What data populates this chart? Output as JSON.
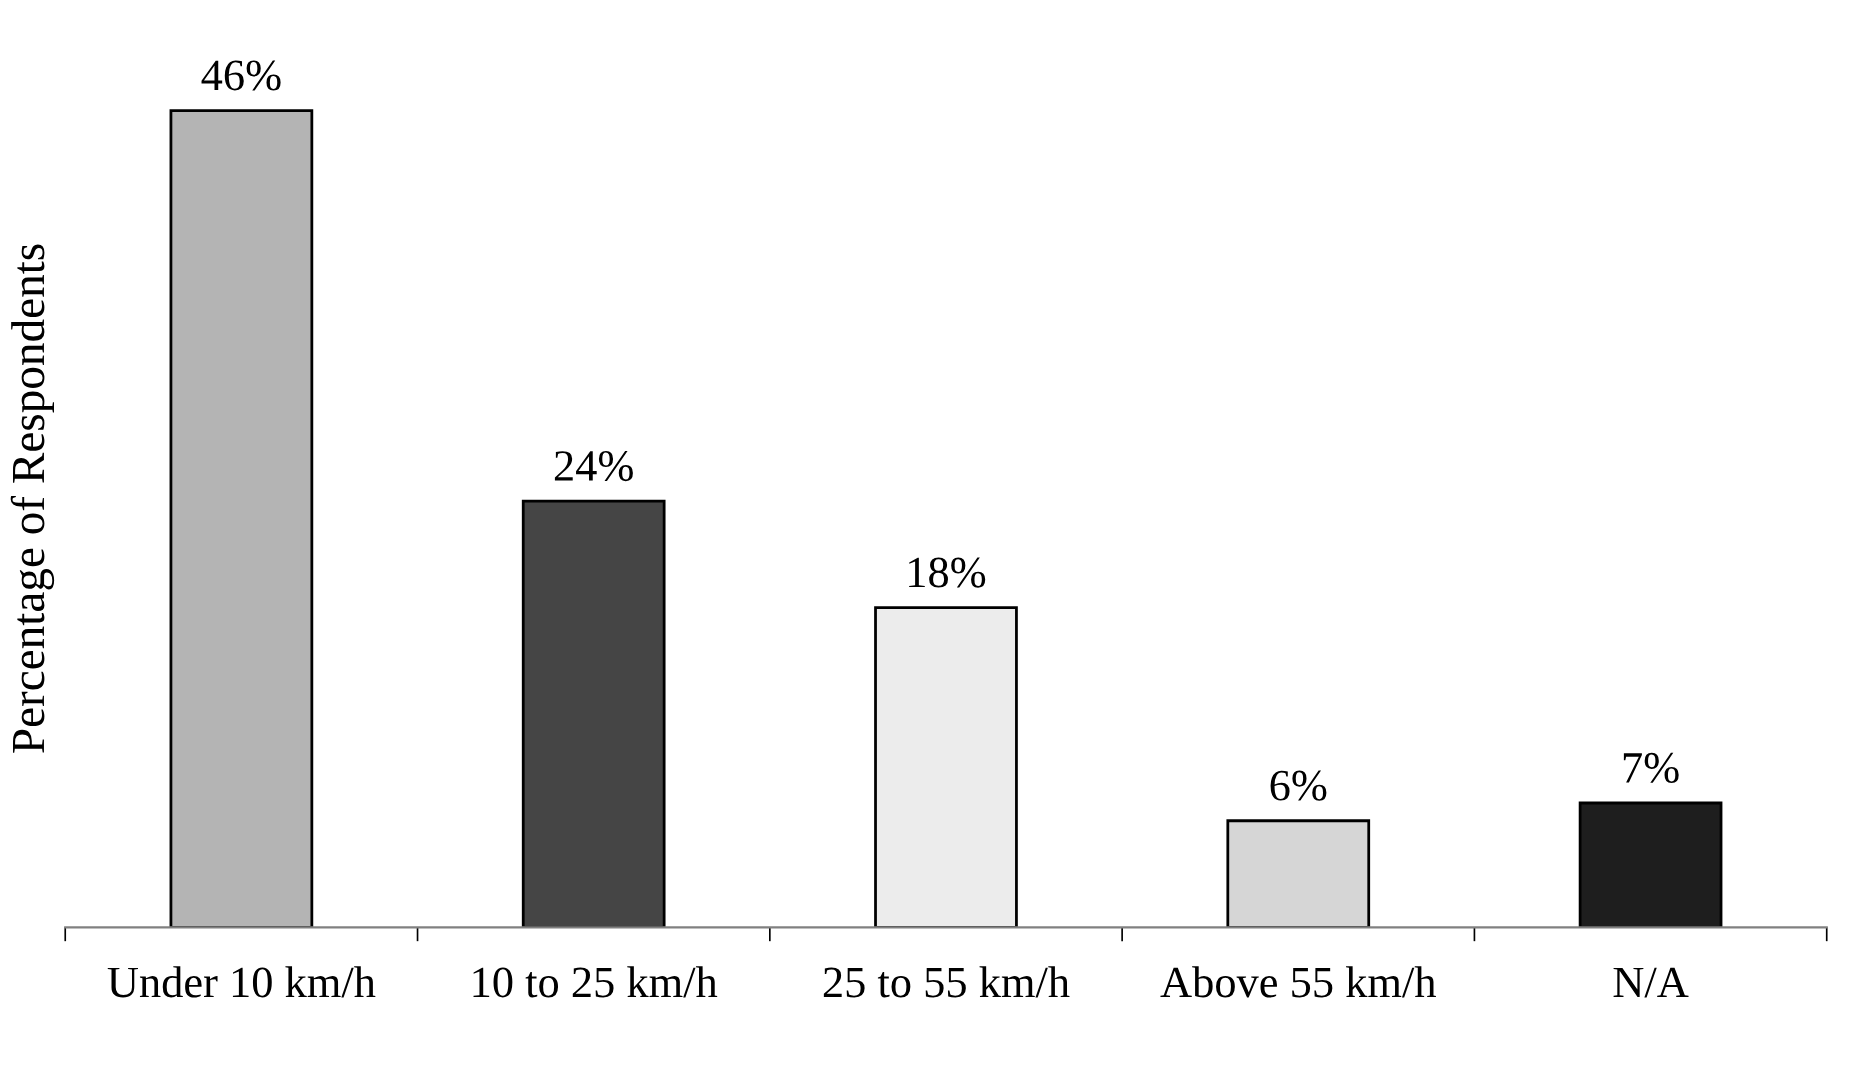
{
  "chart_data": {
    "type": "bar",
    "ylabel": "Percentage of Respondents",
    "categories": [
      "Under 10 km/h",
      "10 to 25 km/h",
      "25 to 55 km/h",
      "Above 55 km/h",
      "N/A"
    ],
    "values": [
      46,
      24,
      18,
      6,
      7
    ],
    "value_labels": [
      "46%",
      "24%",
      "18%",
      "6%",
      "7%"
    ],
    "colors": [
      "#b4b4b4",
      "#454545",
      "#ececec",
      "#d6d6d6",
      "#1e1e1e"
    ],
    "grid": false,
    "legend": false
  }
}
